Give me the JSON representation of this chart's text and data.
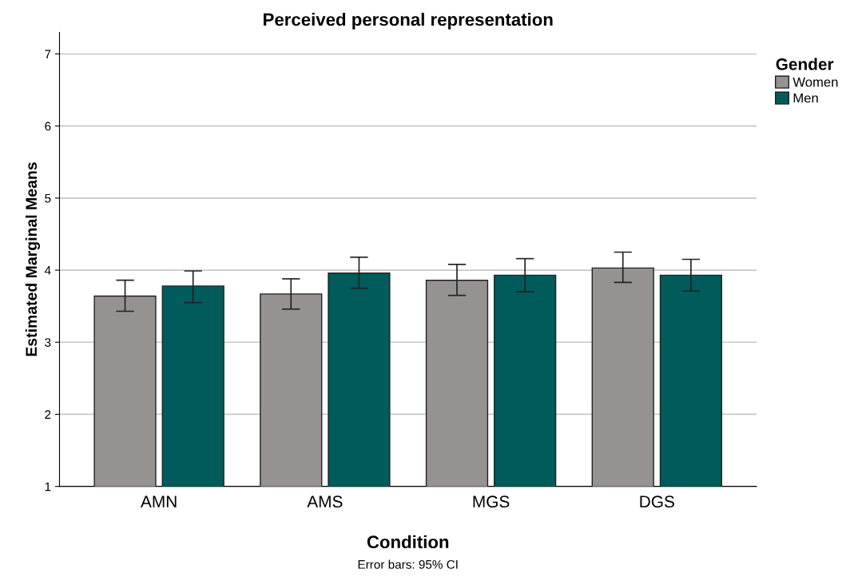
{
  "chart_data": {
    "type": "bar",
    "title": "Perceived personal representation",
    "xlabel": "Condition",
    "ylabel": "Estimated Marginal Means",
    "legend_title": "Gender",
    "annotations": [
      "Error bars: 95% CI"
    ],
    "categories": [
      "AMN",
      "AMS",
      "MGS",
      "DGS"
    ],
    "series": [
      {
        "name": "Women",
        "color": "#959291",
        "values": [
          3.64,
          3.67,
          3.86,
          4.03
        ],
        "errors": [
          [
            3.43,
            3.86
          ],
          [
            3.46,
            3.88
          ],
          [
            3.65,
            4.08
          ],
          [
            3.83,
            4.25
          ]
        ]
      },
      {
        "name": "Men",
        "color": "#005b5b",
        "values": [
          3.78,
          3.96,
          3.93,
          3.93
        ],
        "errors": [
          [
            3.55,
            3.99
          ],
          [
            3.75,
            4.18
          ],
          [
            3.7,
            4.16
          ],
          [
            3.71,
            4.15
          ]
        ]
      }
    ],
    "ylim": [
      1,
      7.3
    ],
    "yticks": [
      1,
      2,
      3,
      4,
      5,
      6,
      7
    ],
    "grid": "y",
    "legend": "right"
  }
}
